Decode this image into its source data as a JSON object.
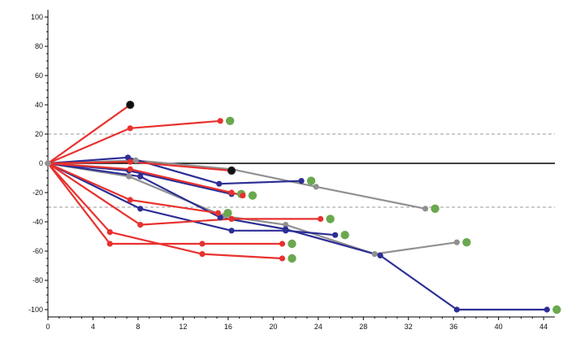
{
  "chart_data": {
    "type": "line",
    "title": "",
    "xlabel": "",
    "ylabel": "",
    "xlim": [
      0,
      45
    ],
    "ylim": [
      -105,
      105
    ],
    "x_ticks": [
      0,
      4,
      8,
      12,
      16,
      20,
      24,
      28,
      32,
      36,
      40,
      44
    ],
    "y_ticks": [
      100,
      80,
      60,
      40,
      20,
      0,
      -20,
      -40,
      -60,
      -80,
      -100
    ],
    "reference_lines": [
      {
        "y": 20,
        "style": "dashed",
        "color": "#9a9a9a"
      },
      {
        "y": 0,
        "style": "solid",
        "color": "#000000"
      },
      {
        "y": -30,
        "style": "dashed",
        "color": "#9a9a9a"
      }
    ],
    "colors": {
      "red": "#e8312e",
      "blue": "#2c2e96",
      "gray": "#909090",
      "ongoing_marker": "#6aa84f",
      "event_marker": "#111111"
    },
    "series": [
      {
        "color": "red",
        "x": [
          0,
          7.3,
          15.3
        ],
        "y": [
          0,
          24,
          29
        ],
        "ongoing": true
      },
      {
        "color": "red",
        "x": [
          0,
          7.3
        ],
        "y": [
          0,
          40
        ],
        "event_at_end": true
      },
      {
        "color": "red",
        "x": [
          0,
          7.3,
          16.3
        ],
        "y": [
          0,
          1,
          -5
        ],
        "event_at_end": true
      },
      {
        "color": "red",
        "x": [
          0,
          7.3,
          16.3,
          17.3
        ],
        "y": [
          0,
          -4,
          -20,
          -22
        ],
        "ongoing": true
      },
      {
        "color": "red",
        "x": [
          0,
          7.3,
          15.1
        ],
        "y": [
          0,
          -25,
          -34
        ],
        "ongoing": true
      },
      {
        "color": "red",
        "x": [
          0,
          8.2,
          16.3,
          24.2
        ],
        "y": [
          0,
          -42,
          -38,
          -38
        ],
        "ongoing": true
      },
      {
        "color": "red",
        "x": [
          0,
          5.5,
          13.7,
          20.8
        ],
        "y": [
          0,
          -47,
          -62,
          -65
        ],
        "ongoing": true
      },
      {
        "color": "red",
        "x": [
          0,
          5.5,
          13.7,
          20.8
        ],
        "y": [
          0,
          -55,
          -55,
          -55
        ],
        "ongoing": true
      },
      {
        "color": "blue",
        "x": [
          0,
          7.1,
          15.2,
          22.5
        ],
        "y": [
          0,
          4,
          -14,
          -12
        ],
        "ongoing": true
      },
      {
        "color": "blue",
        "x": [
          0,
          7.2,
          16.3
        ],
        "y": [
          0,
          -5,
          -21
        ],
        "ongoing": true
      },
      {
        "color": "blue",
        "x": [
          0,
          8.2,
          16.3,
          21.1,
          25.5
        ],
        "y": [
          0,
          -31,
          -46,
          -46,
          -49
        ],
        "ongoing": true
      },
      {
        "color": "blue",
        "x": [
          0,
          8.2,
          15.3,
          21.1,
          29.5,
          36.3,
          44.3
        ],
        "y": [
          0,
          -9,
          -37,
          -45,
          -63,
          -100,
          -100
        ],
        "ongoing": true
      },
      {
        "color": "gray",
        "x": [
          0,
          7.8,
          16.3,
          23.8,
          33.5
        ],
        "y": [
          0,
          2,
          -4,
          -16,
          -31
        ],
        "ongoing": true
      },
      {
        "color": "gray",
        "x": [
          0,
          7.2,
          15.6,
          21.1,
          29.0,
          36.3
        ],
        "y": [
          0,
          -9,
          -36,
          -42,
          -62,
          -54
        ],
        "ongoing": true
      }
    ]
  }
}
